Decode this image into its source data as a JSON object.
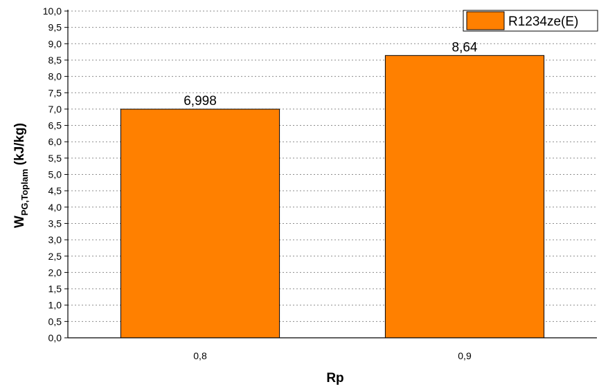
{
  "chart_data": {
    "type": "bar",
    "categories": [
      "0,8",
      "0,9"
    ],
    "series": [
      {
        "name": "R1234ze(E)",
        "values": [
          6.998,
          8.64
        ],
        "color": "#ff8000"
      }
    ],
    "data_labels": [
      "6,998",
      "8,64"
    ],
    "xlabel": "Rp",
    "ylabel": {
      "main": "W",
      "subscript": "PG,Toplam",
      "unit": " (kJ/kg)"
    },
    "ylim": [
      0,
      10
    ],
    "y_ticks": [
      "0,0",
      "0,5",
      "1,0",
      "1,5",
      "2,0",
      "2,5",
      "3,0",
      "3,5",
      "4,0",
      "4,5",
      "5,0",
      "5,5",
      "6,0",
      "6,5",
      "7,0",
      "7,5",
      "8,0",
      "8,5",
      "9,0",
      "9,5",
      "10,0"
    ],
    "grid": true,
    "legend_position": "top-right"
  }
}
